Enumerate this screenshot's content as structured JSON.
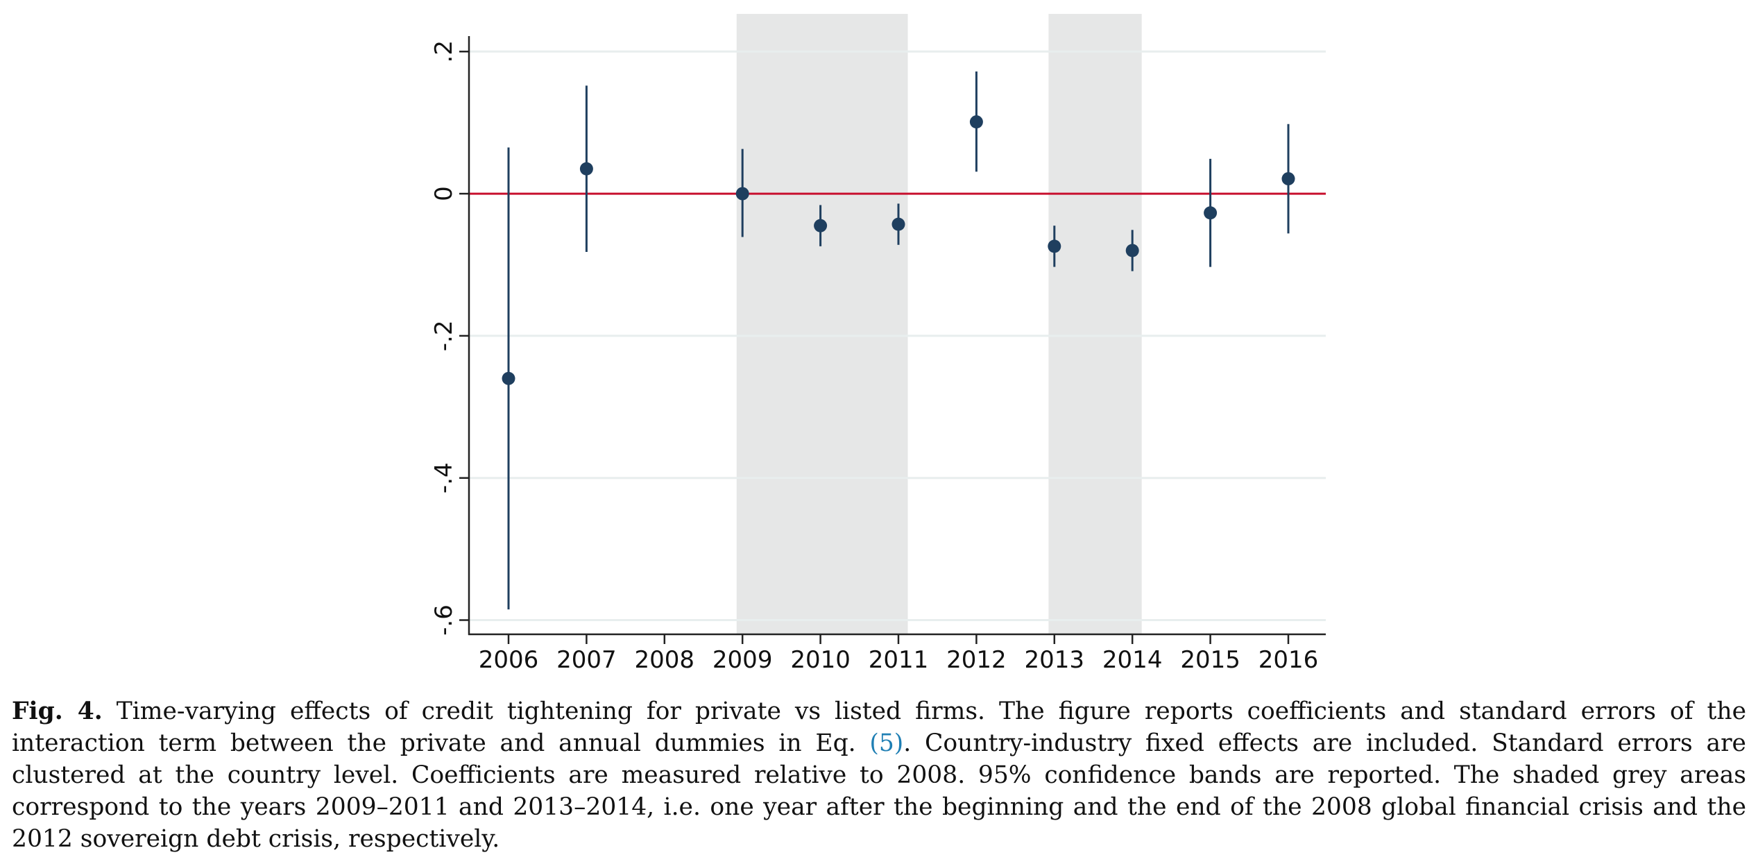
{
  "chart_data": {
    "type": "scatter",
    "subtype": "coefficient plot with 95% confidence intervals",
    "categories": [
      "2006",
      "2007",
      "2008",
      "2009",
      "2010",
      "2011",
      "2012",
      "2013",
      "2014",
      "2015",
      "2016"
    ],
    "series": [
      {
        "coefficients": [
          -0.26,
          0.035,
          null,
          0.0,
          -0.045,
          -0.043,
          0.101,
          -0.074,
          -0.08,
          -0.027,
          0.021
        ],
        "ci_lower": [
          -0.585,
          -0.082,
          null,
          -0.061,
          -0.074,
          -0.072,
          0.031,
          -0.103,
          -0.109,
          -0.103,
          -0.056
        ],
        "ci_upper": [
          0.065,
          0.152,
          null,
          0.063,
          -0.016,
          -0.014,
          0.172,
          -0.045,
          -0.051,
          0.049,
          0.098
        ]
      }
    ],
    "yticks": [
      0.2,
      0,
      -0.2,
      -0.4,
      -0.6
    ],
    "ytick_labels": [
      ".2",
      "0",
      "-.2",
      "-.4",
      "-.6"
    ],
    "ylim": [
      -0.62,
      0.253
    ],
    "reference_line": {
      "y": 0,
      "color": "#c8102e"
    },
    "shaded_periods": [
      {
        "from": "2009",
        "to": "2011"
      },
      {
        "from": "2013",
        "to": "2014"
      }
    ],
    "grid": "horizontal",
    "legend": "none",
    "title": "",
    "xlabel": "",
    "ylabel": "",
    "colors": {
      "marker": "#1f3f5f",
      "shade": "#e6e7e7",
      "grid": "#e8eeee",
      "axis": "#222222",
      "reference": "#c8102e"
    }
  },
  "caption": {
    "label": "Fig. 4.",
    "text_before_ref": " Time-varying effects of credit tightening for private vs listed firms. The figure reports coefficients and standard errors of the interaction term between the private and annual dummies in Eq. ",
    "ref": "(5)",
    "text_after_ref": ". Country-industry fixed effects are included. Standard errors are clustered at the country level. Coefficients are measured relative to 2008. 95% confidence bands are reported. The shaded grey areas correspond to the years 2009–2011 and 2013–2014, i.e. one year after the beginning and the end of the 2008 global financial crisis and the 2012 sovereign debt crisis, respectively."
  }
}
